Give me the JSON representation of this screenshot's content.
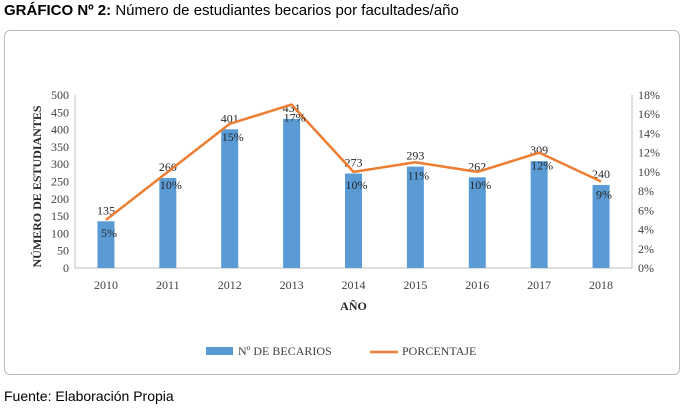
{
  "caption": {
    "label": "GRÁFICO Nº 2:",
    "text": " Número de estudiantes becarios por facultades/año"
  },
  "source": "Fuente: Elaboración Propia",
  "chart_data": {
    "type": "bar",
    "combo": "bar-line dual axis",
    "title": "",
    "xlabel": "AÑO",
    "ylabel": "NÚMERO DE ESTUDIANTES",
    "categories": [
      "2010",
      "2011",
      "2012",
      "2013",
      "2014",
      "2015",
      "2016",
      "2017",
      "2018"
    ],
    "ylim": [
      0,
      500
    ],
    "yticks": [
      0,
      50,
      100,
      150,
      200,
      250,
      300,
      350,
      400,
      450,
      500
    ],
    "y2lim": [
      0,
      18
    ],
    "y2ticks": [
      0,
      2,
      4,
      6,
      8,
      10,
      12,
      14,
      16,
      18
    ],
    "y2tick_labels": [
      "0%",
      "2%",
      "4%",
      "6%",
      "8%",
      "10%",
      "12%",
      "14%",
      "16%",
      "18%"
    ],
    "series": [
      {
        "name": "Nº DE BECARIOS",
        "kind": "bar",
        "axis": "left",
        "color": "#5b9bd5",
        "values": [
          135,
          260,
          401,
          431,
          273,
          293,
          262,
          309,
          240
        ]
      },
      {
        "name": "PORCENTAJE",
        "kind": "line",
        "axis": "right",
        "color": "#ed7d31",
        "values": [
          5,
          10,
          15,
          17,
          10,
          11,
          10,
          12,
          9
        ],
        "labels": [
          "5%",
          "10%",
          "15%",
          "17%",
          "10%",
          "11%",
          "10%",
          "12%",
          "9%"
        ]
      }
    ],
    "grid": false,
    "legend": "bottom"
  }
}
